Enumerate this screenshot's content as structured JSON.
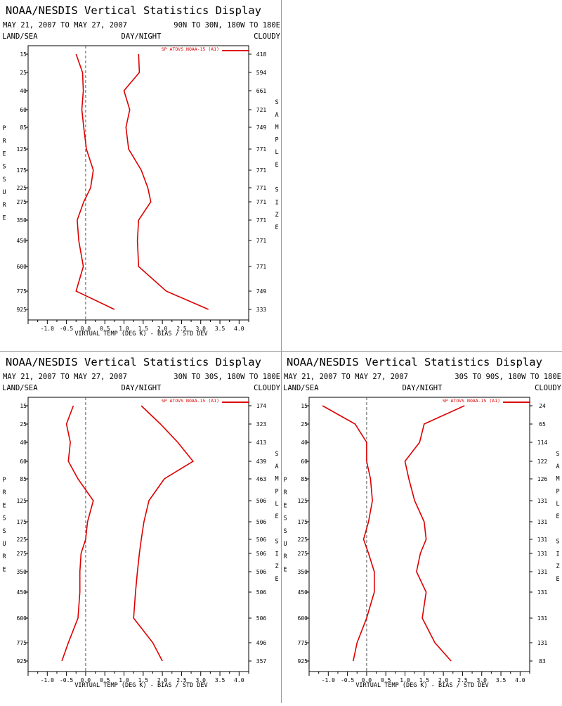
{
  "colors": {
    "series": "#dd0000",
    "axis": "#000000",
    "zero": "#555555"
  },
  "labels": {
    "title": "NOAA/NESDIS Vertical Statistics Display",
    "dates": "MAY 21, 2007 TO MAY 27, 2007",
    "land_sea": "LAND/SEA",
    "day_night": "DAY/NIGHT",
    "cloudy": "CLOUDY",
    "xlabel": "VIRTUAL TEMP (DEG K) - BIAS / STD DEV",
    "ylabel": "PRESSURE",
    "right_label": "SAMPLE SIZE",
    "legend": "SP ATOVS NOAA-15 (A1)"
  },
  "chart_data": [
    {
      "type": "line",
      "region": "90N TO 30N, 180W TO 180E",
      "pressure": [
        "15",
        "25",
        "40",
        "60",
        "85",
        "125",
        "175",
        "225",
        "275",
        "350",
        "450",
        "600",
        "775",
        "925"
      ],
      "sample_size": [
        "418",
        "594",
        "661",
        "721",
        "749",
        "771",
        "771",
        "771",
        "771",
        "771",
        "771",
        "771",
        "749",
        "333"
      ],
      "xlim": [
        -1.5,
        4.25
      ],
      "xticks": [
        "-1.0",
        "-0.5",
        "0.0",
        "0.5",
        "1.0",
        "1.5",
        "2.0",
        "2.5",
        "3.0",
        "3.5",
        "4.0"
      ],
      "series": [
        {
          "values": [
            -0.25,
            -0.08,
            -0.06,
            -0.1,
            -0.05,
            0.02,
            0.2,
            0.13,
            -0.05,
            -0.22,
            -0.18,
            -0.06,
            -0.25,
            0.75
          ]
        },
        {
          "values": [
            1.38,
            1.4,
            1.0,
            1.15,
            1.05,
            1.12,
            1.45,
            1.62,
            1.7,
            1.38,
            1.35,
            1.38,
            2.1,
            3.2
          ]
        }
      ]
    },
    {
      "type": "line",
      "region": "30N TO 30S, 180W TO 180E",
      "pressure": [
        "15",
        "25",
        "40",
        "60",
        "85",
        "125",
        "175",
        "225",
        "275",
        "350",
        "450",
        "600",
        "775",
        "925"
      ],
      "sample_size": [
        "174",
        "323",
        "413",
        "439",
        "463",
        "506",
        "506",
        "506",
        "506",
        "506",
        "506",
        "506",
        "496",
        "357"
      ],
      "xlim": [
        -1.5,
        4.25
      ],
      "xticks": [
        "-1.0",
        "-0.5",
        "0.0",
        "0.5",
        "1.0",
        "1.5",
        "2.0",
        "2.5",
        "3.0",
        "3.5",
        "4.0"
      ],
      "series": [
        {
          "values": [
            -0.32,
            -0.5,
            -0.4,
            -0.45,
            -0.2,
            0.2,
            0.05,
            0.0,
            -0.12,
            -0.15,
            -0.15,
            -0.2,
            -0.45,
            -0.62
          ]
        },
        {
          "values": [
            1.45,
            1.95,
            2.4,
            2.8,
            2.05,
            1.65,
            1.52,
            1.45,
            1.4,
            1.35,
            1.3,
            1.25,
            1.75,
            2.0
          ]
        }
      ]
    },
    {
      "type": "line",
      "region": "30S TO 90S, 180W TO 180E",
      "pressure": [
        "15",
        "25",
        "40",
        "60",
        "85",
        "125",
        "175",
        "225",
        "275",
        "350",
        "450",
        "600",
        "775",
        "925"
      ],
      "sample_size": [
        "24",
        "65",
        "114",
        "122",
        "126",
        "131",
        "131",
        "131",
        "131",
        "131",
        "131",
        "131",
        "131",
        "83"
      ],
      "xlim": [
        -1.5,
        4.25
      ],
      "xticks": [
        "-1.0",
        "-0.5",
        "0.0",
        "0.5",
        "1.0",
        "1.5",
        "2.0",
        "2.5",
        "3.0",
        "3.5",
        "4.0"
      ],
      "series": [
        {
          "values": [
            -1.15,
            -0.3,
            0.0,
            0.0,
            0.1,
            0.15,
            0.05,
            -0.08,
            0.05,
            0.2,
            0.2,
            0.0,
            -0.25,
            -0.35
          ]
        },
        {
          "values": [
            2.55,
            1.5,
            1.38,
            1.0,
            1.1,
            1.25,
            1.5,
            1.55,
            1.4,
            1.3,
            1.55,
            1.45,
            1.78,
            2.2
          ]
        }
      ]
    }
  ]
}
